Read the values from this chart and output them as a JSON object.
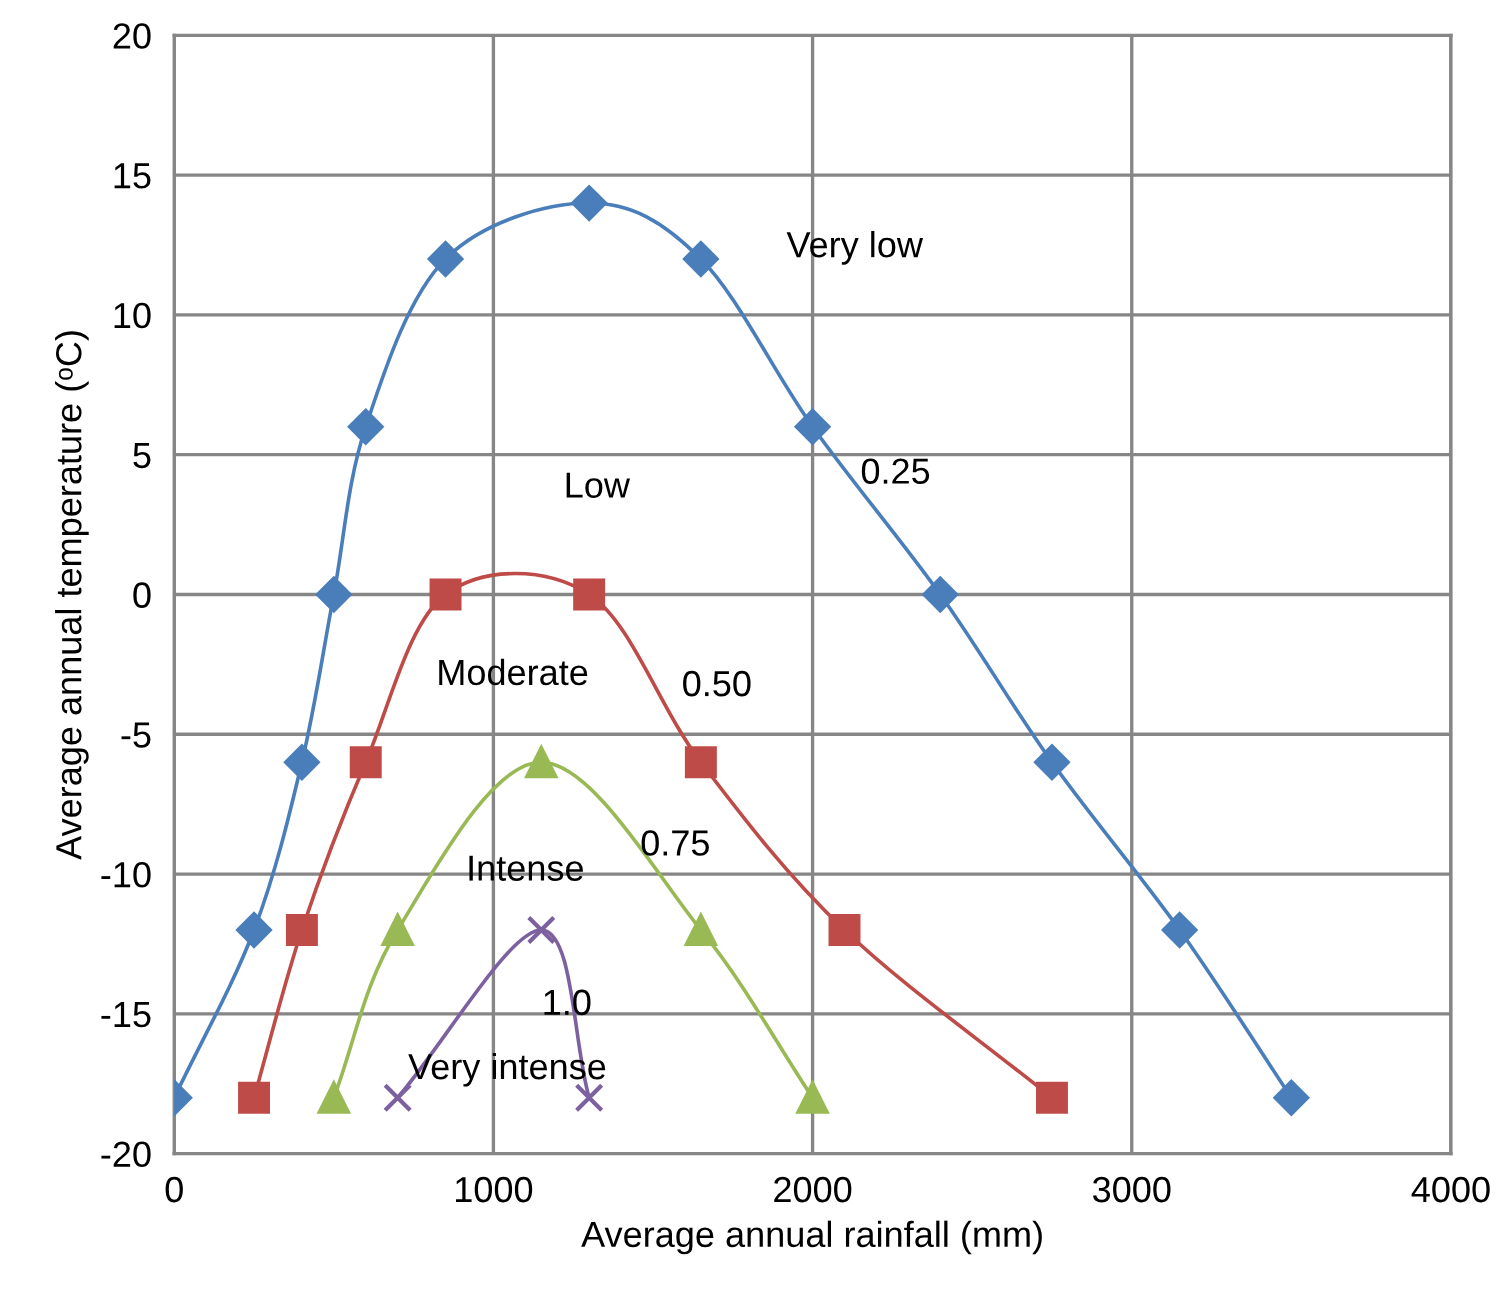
{
  "chart_data": {
    "type": "line",
    "xlabel": "Average annual rainfall (mm)",
    "ylabel": "Average annual temperature (ᵒC)",
    "xlim": [
      0,
      4000
    ],
    "xticks": [
      0,
      1000,
      2000,
      3000,
      4000
    ],
    "ylim": [
      -20,
      20
    ],
    "yticks": [
      -20,
      -15,
      -10,
      -5,
      0,
      5,
      10,
      15,
      20
    ],
    "grid": true,
    "legend": false,
    "series": [
      {
        "color": "#4a7ebb",
        "marker": "diamond",
        "x": [
          0,
          250,
          400,
          500,
          600,
          850,
          1300,
          1650,
          2000,
          2400,
          2750,
          3150,
          3500
        ],
        "values": [
          -18,
          -12,
          -6,
          0,
          6,
          12,
          14,
          12,
          6,
          0,
          -6,
          -12,
          -18
        ]
      },
      {
        "color": "#be4b48",
        "marker": "square",
        "x": [
          250,
          400,
          600,
          850,
          1300,
          1650,
          2100,
          2750
        ],
        "values": [
          -18,
          -12,
          -6,
          0,
          0,
          -6,
          -12,
          -18
        ]
      },
      {
        "color": "#98b954",
        "marker": "triangle",
        "x": [
          500,
          700,
          1150,
          1650,
          2000
        ],
        "values": [
          -18,
          -12,
          -6,
          -12,
          -18
        ]
      },
      {
        "color": "#7d60a0",
        "marker": "cross",
        "x": [
          700,
          1150,
          1300
        ],
        "values": [
          -18,
          -12,
          -18
        ]
      }
    ],
    "annotations": [
      "Very low",
      "0.25",
      "Low",
      "Moderate",
      "0.50",
      "Intense",
      "0.75",
      "1.0",
      "Very intense"
    ]
  }
}
